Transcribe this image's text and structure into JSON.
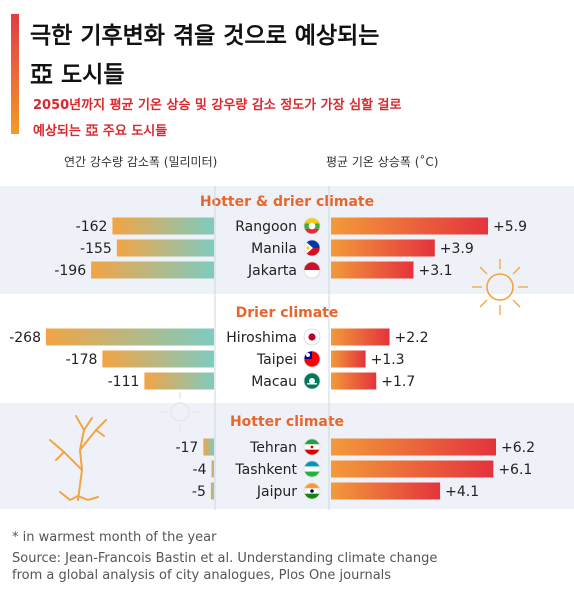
{
  "title": {
    "line1": "극한 기후변화 겪을 것으로 예상되는",
    "line2": "亞 도시들"
  },
  "subtitle": {
    "line1": "2050년까지 평균 기온 상승 및 강우량 감소 정도가 가장 심할 걸로",
    "line2": "예상되는 亞 주요 도시들"
  },
  "chart_data": {
    "type": "bar",
    "left_axis_label": "연간 강수량 감소폭 (밀리미터)",
    "right_axis_label": "평균 기온 상승폭 (˚C)",
    "groups": [
      {
        "name": "Hotter & drier climate",
        "cities": [
          {
            "name": "Rangoon",
            "flag": "myanmar-flag",
            "rain": -162,
            "rain_label": "-162",
            "temp": 5.9,
            "temp_label": "+5.9"
          },
          {
            "name": "Manila",
            "flag": "philippines-flag",
            "rain": -155,
            "rain_label": "-155",
            "temp": 3.9,
            "temp_label": "+3.9"
          },
          {
            "name": "Jakarta",
            "flag": "indonesia-flag",
            "rain": -196,
            "rain_label": "-196",
            "temp": 3.1,
            "temp_label": "+3.1"
          }
        ]
      },
      {
        "name": "Drier climate",
        "cities": [
          {
            "name": "Hiroshima",
            "flag": "japan-flag",
            "rain": -268,
            "rain_label": "-268",
            "temp": 2.2,
            "temp_label": "+2.2"
          },
          {
            "name": "Taipei",
            "flag": "taiwan-flag",
            "rain": -178,
            "rain_label": "-178",
            "temp": 1.3,
            "temp_label": "+1.3"
          },
          {
            "name": "Macau",
            "flag": "macau-flag",
            "rain": -111,
            "rain_label": "-111",
            "temp": 1.7,
            "temp_label": "+1.7"
          }
        ]
      },
      {
        "name": "Hotter climate",
        "cities": [
          {
            "name": "Tehran",
            "flag": "iran-flag",
            "rain": -17,
            "rain_label": "-17",
            "temp": 6.2,
            "temp_label": "+6.2"
          },
          {
            "name": "Tashkent",
            "flag": "uzbekistan-flag",
            "rain": -4,
            "rain_label": "-4",
            "temp": 6.1,
            "temp_label": "+6.1"
          },
          {
            "name": "Jaipur",
            "flag": "india-flag",
            "rain": -5,
            "rain_label": "-5",
            "temp": 4.1,
            "temp_label": "+4.1"
          }
        ]
      }
    ],
    "colors": {
      "rain_bar_start": "#f2a444",
      "rain_bar_end": "#7ecbc0",
      "temp_bar_start": "#f29a3a",
      "temp_bar_end": "#e4333c",
      "group_title": "#e8662c",
      "band": "#eef2f8",
      "accent": "#e23a45"
    },
    "decorations": [
      "sun-icon",
      "dead-tree-icon"
    ]
  },
  "footer": {
    "note": "* in warmest month of the year",
    "source1": "Source: Jean-Francois Bastin et al. Understanding climate change",
    "source2": "from a global analysis of city analogues, Plos One journals"
  }
}
